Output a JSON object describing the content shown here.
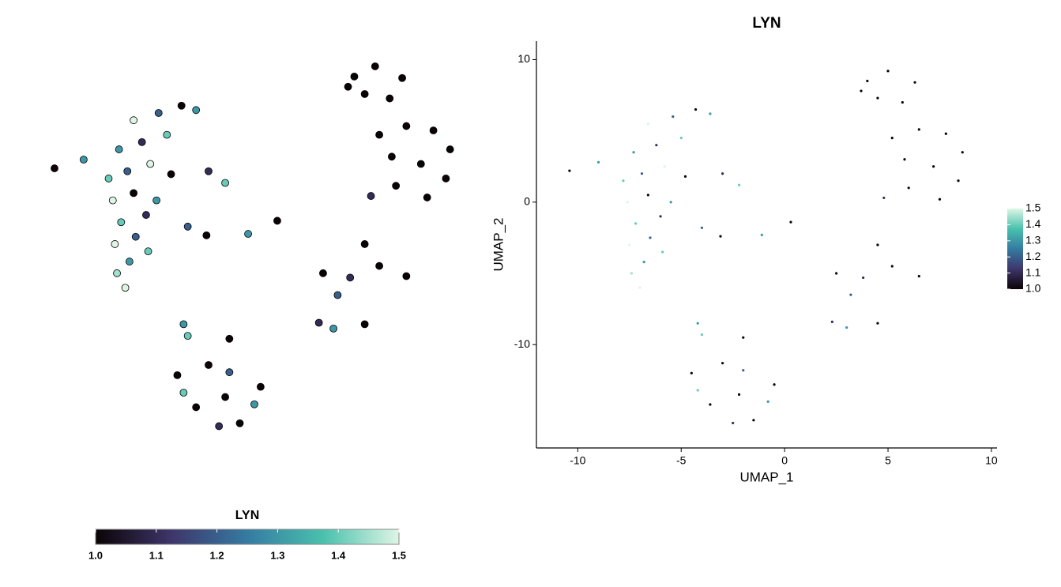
{
  "chart_data": [
    {
      "type": "scatter",
      "legend_title": "LYN",
      "legend_position": "bottom",
      "point_size": 4.5,
      "colorscale": [
        "#0b0405",
        "#3e356b",
        "#357ba2",
        "#49c1ad",
        "#def5e5"
      ],
      "clim": [
        1,
        1.5
      ],
      "cticks": [
        {
          "value": 1,
          "label": "1.0"
        },
        1.1,
        1.2,
        1.3,
        1.4,
        1.5
      ],
      "xlim": [
        -11.5,
        9.75
      ],
      "ylim": [
        -17.7,
        10.5
      ],
      "x": [
        -7.0,
        -7.4,
        -6.8,
        -7.5,
        -6.5,
        -7.2,
        -6.0,
        -7.6,
        -6.6,
        -5.5,
        -7.8,
        -6.9,
        -5.8,
        -4.8,
        -7.3,
        -6.2,
        -5.0,
        -6.6,
        -5.4,
        -4.3,
        -3.6,
        -5.9,
        -10.4,
        -9.0,
        -3.0,
        -2.2,
        -3.1,
        -4.0,
        -1.1,
        0.3,
        4.0,
        5.0,
        6.3,
        4.5,
        5.7,
        3.7,
        5.2,
        6.5,
        7.8,
        8.6,
        5.8,
        7.2,
        8.4,
        6.0,
        7.5,
        4.8,
        2.5,
        3.8,
        5.2,
        6.5,
        4.5,
        3.2,
        2.3,
        3.0,
        4.5,
        -4.2,
        -4.0,
        -2.0,
        -4.5,
        -3.0,
        -2.0,
        -0.5,
        -0.8,
        -1.5,
        -2.5,
        -3.6,
        -4.2,
        -2.2
      ],
      "y": [
        -6.0,
        -5.0,
        -4.2,
        -3.0,
        -2.5,
        -1.5,
        -1.0,
        0.0,
        0.5,
        0.0,
        1.5,
        2.0,
        2.5,
        1.8,
        3.5,
        4.0,
        4.5,
        5.5,
        6.0,
        6.5,
        6.2,
        -3.5,
        2.2,
        2.8,
        2.0,
        1.2,
        -2.4,
        -1.8,
        -2.3,
        -1.4,
        8.5,
        9.2,
        8.4,
        7.3,
        7.0,
        7.8,
        4.5,
        5.1,
        4.8,
        3.5,
        3.0,
        2.5,
        1.5,
        1.0,
        0.2,
        0.3,
        -5.0,
        -5.3,
        -4.5,
        -5.2,
        -3.0,
        -6.5,
        -8.4,
        -8.8,
        -8.5,
        -8.5,
        -9.3,
        -9.5,
        -12.0,
        -11.3,
        -11.8,
        -12.8,
        -14.0,
        -15.3,
        -15.5,
        -14.2,
        -13.2,
        -13.5
      ],
      "values": [
        1.5,
        1.45,
        1.3,
        1.5,
        1.2,
        1.4,
        1.1,
        1.5,
        1.0,
        1.3,
        1.4,
        1.2,
        1.5,
        1.0,
        1.3,
        1.1,
        1.4,
        1.5,
        1.2,
        1.0,
        1.3,
        1.4,
        1.0,
        1.3,
        1.1,
        1.4,
        1.0,
        1.2,
        1.3,
        1.0,
        1.0,
        1.0,
        1.0,
        1.0,
        1.0,
        1.0,
        1.0,
        1.0,
        1.0,
        1.0,
        1.0,
        1.0,
        1.0,
        1.0,
        1.0,
        1.1,
        1.0,
        1.1,
        1.0,
        1.0,
        1.0,
        1.2,
        1.1,
        1.3,
        1.0,
        1.3,
        1.4,
        1.0,
        1.0,
        1.0,
        1.2,
        1.0,
        1.3,
        1.0,
        1.1,
        1.0,
        1.4,
        1.0
      ]
    },
    {
      "type": "scatter",
      "title": "LYN",
      "xlabel": "UMAP_1",
      "ylabel": "UMAP_2",
      "legend_position": "right",
      "point_size": 1.6,
      "colorscale": [
        "#0b0405",
        "#3e356b",
        "#357ba2",
        "#49c1ad",
        "#def5e5"
      ],
      "clim": [
        1,
        1.5
      ],
      "cticks": [
        {
          "value": 1,
          "label": "1.0"
        },
        1.1,
        1.2,
        1.3,
        1.4,
        1.5
      ],
      "xlim": [
        -12,
        10.27
      ],
      "ylim": [
        -17.25,
        11.3
      ],
      "xticks": [
        -10,
        -5,
        0,
        5,
        10
      ],
      "yticks": [
        -10,
        0,
        10
      ],
      "x": [
        -7.0,
        -7.4,
        -6.8,
        -7.5,
        -6.5,
        -7.2,
        -6.0,
        -7.6,
        -6.6,
        -5.5,
        -7.8,
        -6.9,
        -5.8,
        -4.8,
        -7.3,
        -6.2,
        -5.0,
        -6.6,
        -5.4,
        -4.3,
        -3.6,
        -5.9,
        -10.4,
        -9.0,
        -3.0,
        -2.2,
        -3.1,
        -4.0,
        -1.1,
        0.3,
        4.0,
        5.0,
        6.3,
        4.5,
        5.7,
        3.7,
        5.2,
        6.5,
        7.8,
        8.6,
        5.8,
        7.2,
        8.4,
        6.0,
        7.5,
        4.8,
        2.5,
        3.8,
        5.2,
        6.5,
        4.5,
        3.2,
        2.3,
        3.0,
        4.5,
        -4.2,
        -4.0,
        -2.0,
        -4.5,
        -3.0,
        -2.0,
        -0.5,
        -0.8,
        -1.5,
        -2.5,
        -3.6,
        -4.2,
        -2.2
      ],
      "y": [
        -6.0,
        -5.0,
        -4.2,
        -3.0,
        -2.5,
        -1.5,
        -1.0,
        0.0,
        0.5,
        0.0,
        1.5,
        2.0,
        2.5,
        1.8,
        3.5,
        4.0,
        4.5,
        5.5,
        6.0,
        6.5,
        6.2,
        -3.5,
        2.2,
        2.8,
        2.0,
        1.2,
        -2.4,
        -1.8,
        -2.3,
        -1.4,
        8.5,
        9.2,
        8.4,
        7.3,
        7.0,
        7.8,
        4.5,
        5.1,
        4.8,
        3.5,
        3.0,
        2.5,
        1.5,
        1.0,
        0.2,
        0.3,
        -5.0,
        -5.3,
        -4.5,
        -5.2,
        -3.0,
        -6.5,
        -8.4,
        -8.8,
        -8.5,
        -8.5,
        -9.3,
        -9.5,
        -12.0,
        -11.3,
        -11.8,
        -12.8,
        -14.0,
        -15.3,
        -15.5,
        -14.2,
        -13.2,
        -13.5
      ],
      "values": [
        1.5,
        1.45,
        1.3,
        1.5,
        1.2,
        1.4,
        1.1,
        1.5,
        1.0,
        1.3,
        1.4,
        1.2,
        1.5,
        1.0,
        1.3,
        1.1,
        1.4,
        1.5,
        1.2,
        1.0,
        1.3,
        1.4,
        1.0,
        1.3,
        1.1,
        1.4,
        1.0,
        1.2,
        1.3,
        1.0,
        1.0,
        1.0,
        1.0,
        1.0,
        1.0,
        1.0,
        1.0,
        1.0,
        1.0,
        1.0,
        1.0,
        1.0,
        1.0,
        1.0,
        1.0,
        1.1,
        1.0,
        1.1,
        1.0,
        1.0,
        1.0,
        1.2,
        1.1,
        1.3,
        1.0,
        1.3,
        1.4,
        1.0,
        1.0,
        1.0,
        1.2,
        1.0,
        1.3,
        1.0,
        1.1,
        1.0,
        1.4,
        1.0
      ]
    }
  ]
}
